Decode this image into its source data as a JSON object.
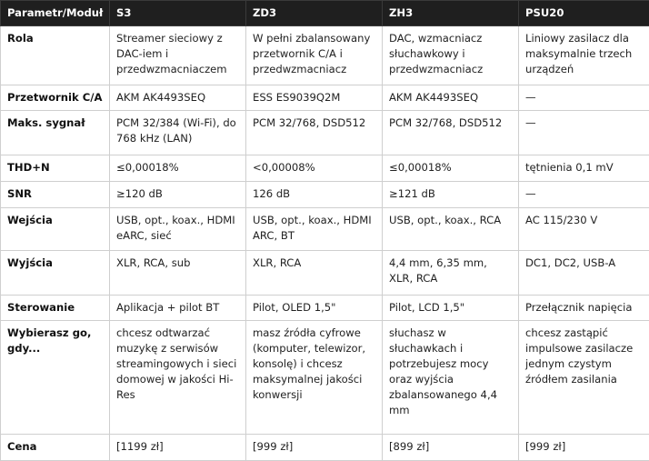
{
  "table": {
    "header": [
      "Parametr/Moduł",
      "S3",
      "ZD3",
      "ZH3",
      "PSU20"
    ],
    "rows": [
      [
        "Rola",
        "Streamer sieciowy z DAC-iem i przedwzmacniaczem",
        "W pełni zbalansowany przetwornik C/A i przedwzmacniacz",
        "DAC, wzmacniacz słuchawkowy i przedwzmacniacz",
        "Liniowy zasilacz dla maksymalnie trzech urządzeń"
      ],
      [
        "Przetwornik C/A",
        "AKM AK4493SEQ",
        "ESS ES9039Q2M",
        "AKM AK4493SEQ",
        "—"
      ],
      [
        "Maks. sygnał",
        "PCM 32/384 (Wi-Fi), do 768 kHz (LAN)",
        "PCM 32/768, DSD512",
        "PCM 32/768, DSD512",
        "—"
      ],
      [
        "THD+N",
        "≤0,00018%",
        "<0,00008%",
        "≤0,00018%",
        "tętnienia 0,1 mV"
      ],
      [
        "SNR",
        "≥120 dB",
        "126 dB",
        "≥121 dB",
        "—"
      ],
      [
        "Wejścia",
        "USB, opt., koax., HDMI eARC, sieć",
        "USB, opt., koax., HDMI ARC, BT",
        "USB, opt., koax., RCA",
        "AC 115/230 V"
      ],
      [
        "Wyjścia",
        "XLR, RCA, sub",
        "XLR, RCA",
        "4,4 mm, 6,35 mm, XLR, RCA",
        "DC1, DC2, USB-A"
      ],
      [
        "Sterowanie",
        "Aplikacja + pilot BT",
        "Pilot, OLED 1,5\"",
        "Pilot, LCD 1,5\"",
        "Przełącznik napięcia"
      ],
      [
        "Wybierasz go, gdy...",
        "chcesz odtwarzać muzykę z serwisów streamingowych i sieci domowej w jakości Hi-Res",
        "masz źródła cyfrowe (komputer, telewizor, konsolę) i chcesz maksymalnej jakości konwersji",
        "słuchasz w słuchawkach i potrzebujesz mocy oraz wyjścia zbalansowanego 4,4 mm",
        "chcesz zastąpić impulsowe zasilacze jednym czystym źródłem zasilania"
      ],
      [
        "Cena",
        "[1199 zł]",
        "[999 zł]",
        "[899 zł]",
        "[999 zł]"
      ]
    ]
  }
}
